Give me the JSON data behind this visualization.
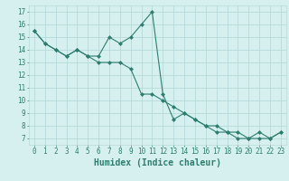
{
  "line1_x": [
    0,
    1,
    2,
    3,
    4,
    5,
    6,
    7,
    8,
    9,
    10,
    11,
    12,
    13,
    14,
    15,
    16,
    17,
    18,
    19,
    20,
    21,
    22,
    23
  ],
  "line1_y": [
    15.5,
    14.5,
    14.0,
    13.5,
    14.0,
    13.5,
    13.5,
    15.0,
    14.5,
    15.0,
    16.0,
    17.0,
    10.5,
    8.5,
    9.0,
    8.5,
    8.0,
    7.5,
    7.5,
    7.0,
    7.0,
    7.5,
    7.0,
    7.5
  ],
  "line2_x": [
    0,
    1,
    2,
    3,
    4,
    5,
    6,
    7,
    8,
    9,
    10,
    11,
    12,
    13,
    14,
    15,
    16,
    17,
    18,
    19,
    20,
    21,
    22,
    23
  ],
  "line2_y": [
    15.5,
    14.5,
    14.0,
    13.5,
    14.0,
    13.5,
    13.0,
    13.0,
    13.0,
    12.5,
    10.5,
    10.5,
    10.0,
    9.5,
    9.0,
    8.5,
    8.0,
    8.0,
    7.5,
    7.5,
    7.0,
    7.0,
    7.0,
    7.5
  ],
  "color": "#2e7d6e",
  "bg_color": "#d6f0f0",
  "grid_color": "#b8dada",
  "xlabel": "Humidex (Indice chaleur)",
  "xlim": [
    -0.5,
    23.5
  ],
  "ylim": [
    6.5,
    17.5
  ],
  "xticks": [
    0,
    1,
    2,
    3,
    4,
    5,
    6,
    7,
    8,
    9,
    10,
    11,
    12,
    13,
    14,
    15,
    16,
    17,
    18,
    19,
    20,
    21,
    22,
    23
  ],
  "yticks": [
    7,
    8,
    9,
    10,
    11,
    12,
    13,
    14,
    15,
    16,
    17
  ],
  "tick_fontsize": 5.5,
  "xlabel_fontsize": 7.0,
  "figw": 3.2,
  "figh": 2.0,
  "dpi": 100
}
